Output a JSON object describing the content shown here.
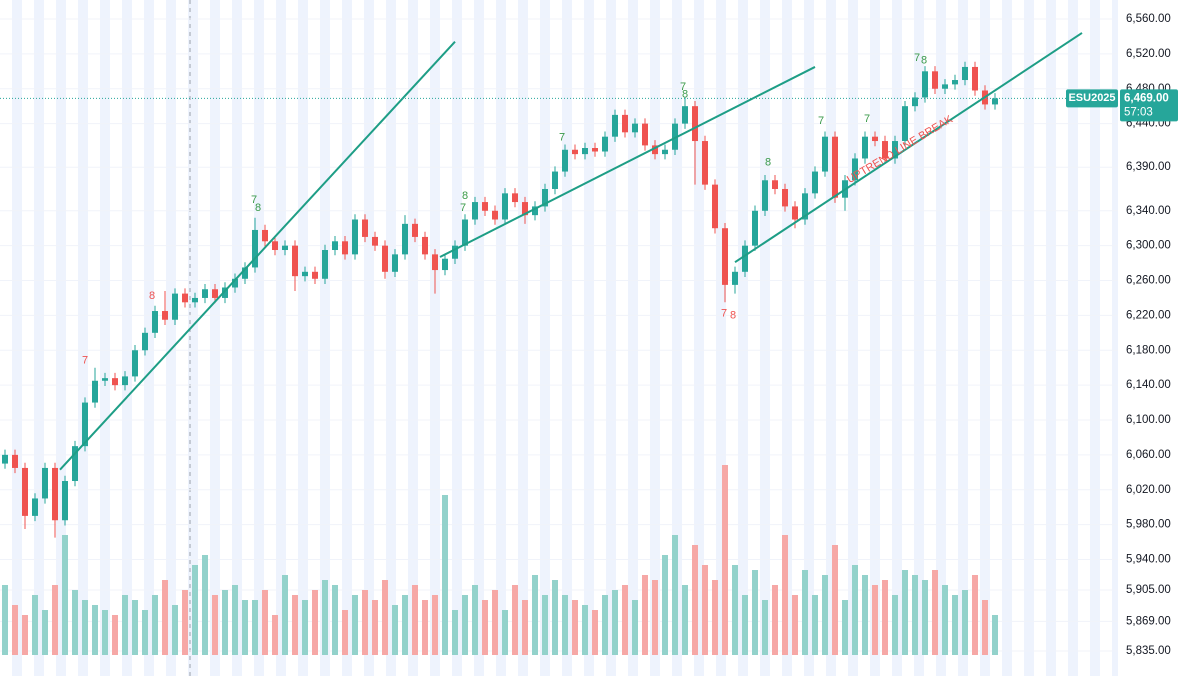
{
  "chart_data": {
    "type": "candlestick",
    "symbol": "ESU2025",
    "current_price": {
      "value": 6469,
      "label": "6,469.00"
    },
    "countdown": "57:03",
    "annotation": {
      "text": "UPTREND LINE BREAK",
      "index": 89.5,
      "price": 6410
    },
    "ylim": [
      5835,
      6560
    ],
    "yticks": [
      {
        "value": 6560,
        "label": "6,560.00"
      },
      {
        "value": 6520,
        "label": "6,520.00"
      },
      {
        "value": 6480,
        "label": "6,480.00"
      },
      {
        "value": 6440,
        "label": "6,440.00"
      },
      {
        "value": 6390,
        "label": "6,390.00"
      },
      {
        "value": 6340,
        "label": "6,340.00"
      },
      {
        "value": 6300,
        "label": "6,300.00"
      },
      {
        "value": 6260,
        "label": "6,260.00"
      },
      {
        "value": 6220,
        "label": "6,220.00"
      },
      {
        "value": 6180,
        "label": "6,180.00"
      },
      {
        "value": 6140,
        "label": "6,140.00"
      },
      {
        "value": 6100,
        "label": "6,100.00"
      },
      {
        "value": 6060,
        "label": "6,060.00"
      },
      {
        "value": 6020,
        "label": "6,020.00"
      },
      {
        "value": 5980,
        "label": "5,980.00"
      },
      {
        "value": 5940,
        "label": "5,940.00"
      },
      {
        "value": 5905,
        "label": "5,905.00"
      },
      {
        "value": 5869,
        "label": "5,869.00"
      },
      {
        "value": 5835,
        "label": "5,835.00"
      }
    ],
    "up_color": "#26a69a",
    "down_color": "#ef5350",
    "up_volume_color": "#93d2cb",
    "down_volume_color": "#f6a8a6",
    "trend_color": "#1e9e86",
    "grid": true,
    "volume_lim": [
      0,
      200
    ],
    "open": [
      6050,
      6060,
      6045,
      5990,
      6010,
      6045,
      5985,
      6030,
      6070,
      6120,
      6145,
      6148,
      6140,
      6150,
      6180,
      6200,
      6225,
      6215,
      6245,
      6235,
      6240,
      6250,
      6240,
      6252,
      6262,
      6275,
      6318,
      6305,
      6295,
      6300,
      6265,
      6270,
      6262,
      6295,
      6305,
      6290,
      6330,
      6310,
      6300,
      6270,
      6290,
      6325,
      6310,
      6290,
      6272,
      6285,
      6300,
      6330,
      6350,
      6340,
      6330,
      6360,
      6350,
      6335,
      6345,
      6365,
      6385,
      6410,
      6405,
      6412,
      6408,
      6425,
      6450,
      6430,
      6440,
      6415,
      6405,
      6410,
      6440,
      6460,
      6420,
      6370,
      6320,
      6255,
      6270,
      6300,
      6340,
      6375,
      6365,
      6345,
      6330,
      6360,
      6385,
      6425,
      6355,
      6375,
      6400,
      6425,
      6420,
      6400,
      6420,
      6460,
      6470,
      6500,
      6480,
      6485,
      6490,
      6505,
      6478,
      6462
    ],
    "high": [
      6066,
      6066,
      6051,
      6016,
      6051,
      6051,
      6036,
      6076,
      6126,
      6160,
      6154,
      6154,
      6156,
      6186,
      6206,
      6231,
      6248,
      6251,
      6251,
      6246,
      6256,
      6256,
      6258,
      6268,
      6281,
      6332,
      6324,
      6311,
      6306,
      6306,
      6276,
      6276,
      6301,
      6311,
      6311,
      6336,
      6336,
      6316,
      6306,
      6296,
      6335,
      6331,
      6316,
      6296,
      6291,
      6306,
      6336,
      6356,
      6356,
      6346,
      6366,
      6366,
      6356,
      6351,
      6371,
      6391,
      6416,
      6416,
      6418,
      6418,
      6431,
      6456,
      6456,
      6446,
      6446,
      6421,
      6416,
      6446,
      6470,
      6466,
      6426,
      6376,
      6326,
      6276,
      6306,
      6346,
      6381,
      6381,
      6371,
      6351,
      6366,
      6391,
      6431,
      6431,
      6381,
      6406,
      6431,
      6431,
      6426,
      6426,
      6466,
      6476,
      6506,
      6506,
      6491,
      6496,
      6511,
      6511,
      6484,
      6475
    ],
    "low": [
      6044,
      6039,
      5975,
      5984,
      6004,
      5965,
      5979,
      6024,
      6064,
      6114,
      6139,
      6134,
      6134,
      6144,
      6174,
      6194,
      6209,
      6209,
      6229,
      6229,
      6234,
      6234,
      6234,
      6246,
      6256,
      6269,
      6299,
      6289,
      6289,
      6248,
      6259,
      6256,
      6256,
      6289,
      6284,
      6284,
      6304,
      6294,
      6262,
      6264,
      6284,
      6304,
      6284,
      6245,
      6266,
      6279,
      6294,
      6324,
      6334,
      6324,
      6324,
      6344,
      6325,
      6329,
      6339,
      6359,
      6379,
      6399,
      6399,
      6402,
      6402,
      6419,
      6424,
      6424,
      6409,
      6399,
      6399,
      6404,
      6434,
      6370,
      6364,
      6314,
      6235,
      6245,
      6264,
      6294,
      6334,
      6359,
      6339,
      6320,
      6324,
      6354,
      6379,
      6349,
      6340,
      6369,
      6394,
      6414,
      6394,
      6394,
      6414,
      6454,
      6464,
      6474,
      6474,
      6479,
      6484,
      6472,
      6456,
      6456
    ],
    "close": [
      6060,
      6045,
      5990,
      6010,
      6045,
      5985,
      6030,
      6070,
      6120,
      6145,
      6148,
      6140,
      6150,
      6180,
      6200,
      6225,
      6215,
      6245,
      6235,
      6240,
      6250,
      6240,
      6252,
      6262,
      6275,
      6318,
      6305,
      6295,
      6300,
      6265,
      6270,
      6262,
      6295,
      6305,
      6290,
      6330,
      6310,
      6300,
      6270,
      6290,
      6325,
      6310,
      6290,
      6272,
      6285,
      6300,
      6330,
      6350,
      6340,
      6330,
      6360,
      6350,
      6335,
      6345,
      6365,
      6385,
      6410,
      6405,
      6412,
      6408,
      6425,
      6450,
      6430,
      6440,
      6415,
      6405,
      6410,
      6440,
      6460,
      6420,
      6370,
      6320,
      6255,
      6270,
      6300,
      6340,
      6375,
      6365,
      6345,
      6330,
      6360,
      6385,
      6425,
      6355,
      6375,
      6400,
      6425,
      6420,
      6400,
      6420,
      6460,
      6470,
      6500,
      6480,
      6485,
      6490,
      6505,
      6478,
      6462,
      6469
    ],
    "volume": [
      70,
      50,
      40,
      60,
      45,
      70,
      120,
      65,
      55,
      50,
      45,
      40,
      60,
      55,
      45,
      60,
      75,
      50,
      65,
      90,
      100,
      60,
      65,
      70,
      55,
      55,
      65,
      40,
      80,
      60,
      55,
      65,
      75,
      70,
      45,
      60,
      65,
      55,
      75,
      50,
      60,
      70,
      55,
      60,
      160,
      45,
      60,
      70,
      55,
      65,
      45,
      70,
      55,
      80,
      60,
      75,
      60,
      55,
      50,
      45,
      60,
      65,
      70,
      55,
      80,
      75,
      100,
      120,
      70,
      110,
      90,
      75,
      190,
      90,
      60,
      85,
      55,
      70,
      120,
      60,
      85,
      60,
      80,
      110,
      55,
      90,
      80,
      70,
      75,
      60,
      85,
      80,
      75,
      85,
      70,
      60,
      65,
      80,
      55,
      40
    ],
    "trendlines": [
      {
        "from": [
          5.5,
          6043
        ],
        "to": [
          45,
          6534
        ]
      },
      {
        "from": [
          43.5,
          6287
        ],
        "to": [
          81,
          6505
        ]
      },
      {
        "from": [
          73,
          6281
        ],
        "to": [
          107.7,
          6544
        ]
      }
    ],
    "signals": [
      {
        "index": 8,
        "price": 6168,
        "label": 7
      },
      {
        "index": 14.7,
        "price": 6242,
        "label": 8
      },
      {
        "index": 24.9,
        "price": 6352,
        "label": 7
      },
      {
        "index": 25.3,
        "price": 6343,
        "label": 8
      },
      {
        "index": 45.8,
        "price": 6343,
        "label": 7
      },
      {
        "index": 46,
        "price": 6357,
        "label": 8
      },
      {
        "index": 55.7,
        "price": 6424,
        "label": 7
      },
      {
        "index": 67.8,
        "price": 6482,
        "label": 7
      },
      {
        "index": 68,
        "price": 6473,
        "label": 8
      },
      {
        "index": 71.9,
        "price": 6222,
        "label": 7
      },
      {
        "index": 72.8,
        "price": 6220,
        "label": 8
      },
      {
        "index": 76.3,
        "price": 6395,
        "label": 8
      },
      {
        "index": 81.6,
        "price": 6443,
        "label": 7
      },
      {
        "index": 86.2,
        "price": 6445,
        "label": 7
      },
      {
        "index": 91.2,
        "price": 6515,
        "label": 7
      },
      {
        "index": 91.9,
        "price": 6512,
        "label": 8
      }
    ]
  }
}
